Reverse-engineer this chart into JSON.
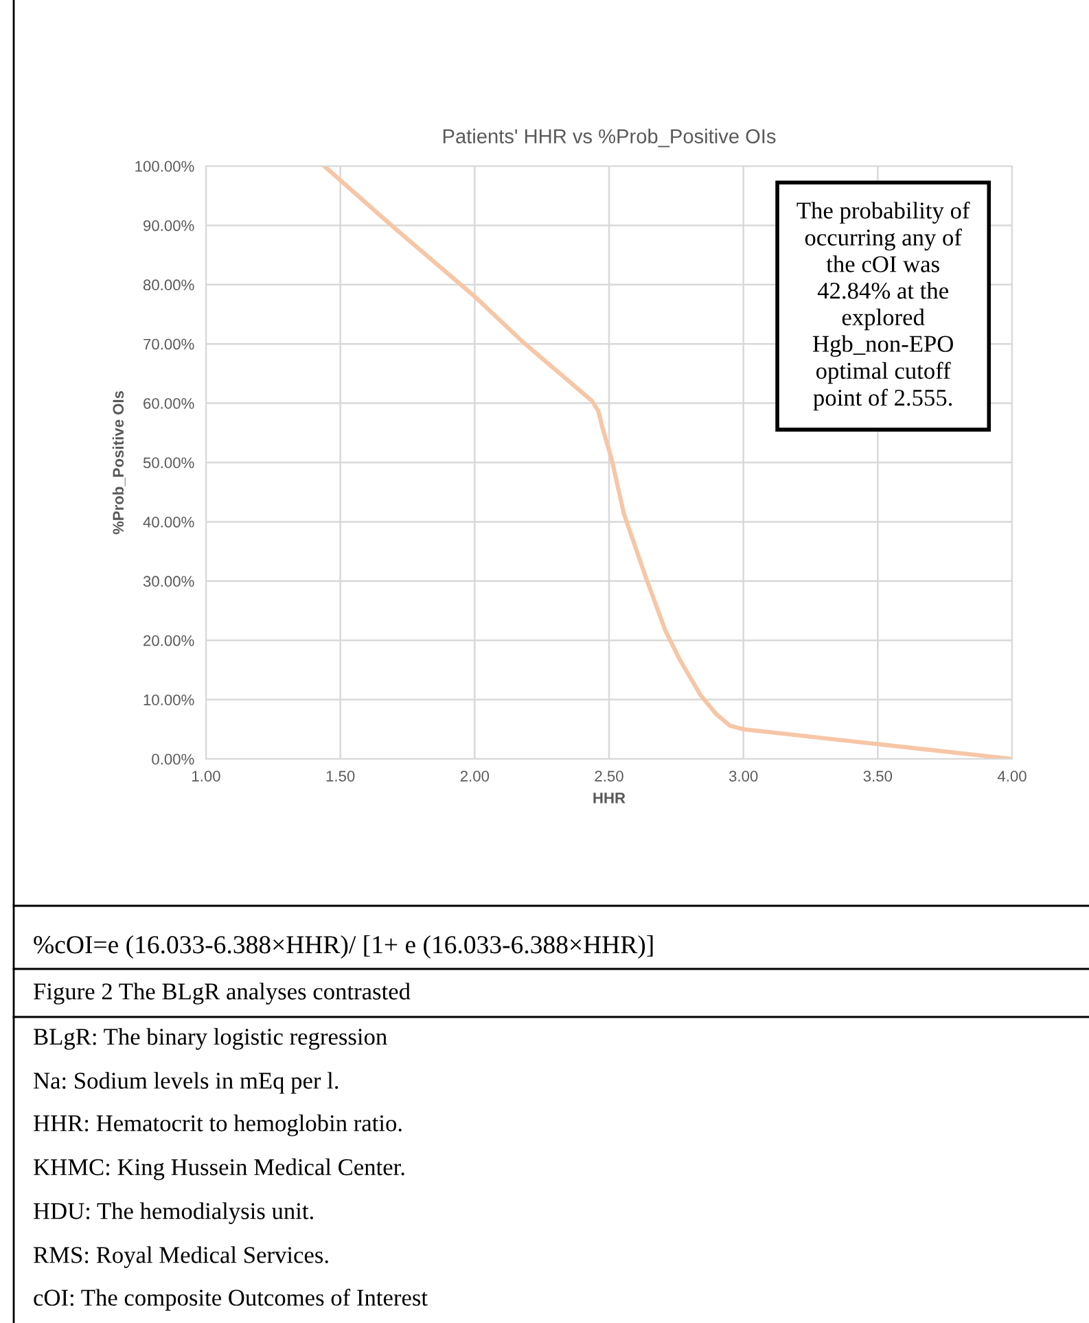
{
  "chart_data": {
    "type": "line",
    "title": "Patients' HHR vs %Prob_Positive OIs",
    "xlabel": "HHR",
    "ylabel": "%Prob_Positive OIs",
    "series": [
      {
        "color": "#f6c6a6",
        "x": [
          1.44,
          1.69,
          2.0,
          2.18,
          2.436,
          2.46,
          2.476,
          2.51,
          2.555,
          2.637,
          2.71,
          2.765,
          2.84,
          2.9,
          2.95,
          3.0,
          3.5,
          4.0
        ],
        "values": [
          100,
          90,
          78,
          70.3,
          60.4,
          58.7,
          55.8,
          50.5,
          41.4,
          30.6,
          21.6,
          16.6,
          10.8,
          7.5,
          5.6,
          5.0,
          2.5,
          0
        ]
      }
    ],
    "xlim": [
      1.0,
      4.0
    ],
    "ylim": [
      0,
      100
    ],
    "xticks": [
      {
        "value": 1.0,
        "label": "1.00"
      },
      {
        "value": 1.5,
        "label": "1.50"
      },
      {
        "value": 2.0,
        "label": "2.00"
      },
      {
        "value": 2.5,
        "label": "2.50"
      },
      {
        "value": 3.0,
        "label": "3.00"
      },
      {
        "value": 3.5,
        "label": "3.50"
      },
      {
        "value": 4.0,
        "label": "4.00"
      }
    ],
    "yticks": [
      {
        "value": 0,
        "label": "0.00%"
      },
      {
        "value": 10,
        "label": "10.00%"
      },
      {
        "value": 20,
        "label": "20.00%"
      },
      {
        "value": 30,
        "label": "30.00%"
      },
      {
        "value": 40,
        "label": "40.00%"
      },
      {
        "value": 50,
        "label": "50.00%"
      },
      {
        "value": 60,
        "label": "60.00%"
      },
      {
        "value": 70,
        "label": "70.00%"
      },
      {
        "value": 80,
        "label": "80.00%"
      },
      {
        "value": 90,
        "label": "90.00%"
      },
      {
        "value": 100,
        "label": "100.00%"
      }
    ],
    "grid": true,
    "marker": "none",
    "line_style": "solid",
    "annotations": [
      "The probability of\noccurring any of\nthe cOI was\n42.84% at the\nexplored\nHgb_non-EPO\noptimal cutoff\npoint of 2.555.",
      "%cOI=e (16.033-6.388×HHR)/ [1+ e (16.033-6.388×HHR)]",
      "Figure 2 The BLgR analyses contrasted",
      "BLgR: The binary logistic regression",
      "Na: Sodium levels in mEq per l.",
      "HHR: Hematocrit to hemoglobin ratio.",
      "KHMC: King Hussein Medical Center.",
      "HDU: The hemodialysis unit.",
      "RMS: Royal Medical Services.",
      "cOI: The composite Outcomes of Interest"
    ]
  }
}
